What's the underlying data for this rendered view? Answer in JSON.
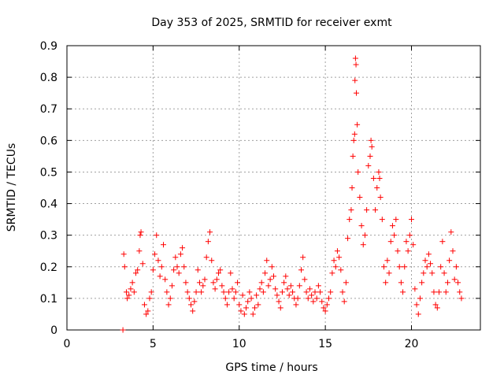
{
  "chart_data": {
    "type": "scatter",
    "title": "Day 353 of 2025, SRMTID for receiver exmt",
    "xlabel": "GPS time / hours",
    "ylabel": "SRMTID / TECUs",
    "xlim": [
      0,
      24
    ],
    "ylim": [
      0,
      0.9
    ],
    "xticks": [
      0,
      5,
      10,
      15,
      20
    ],
    "yticks": [
      0,
      0.1,
      0.2,
      0.3,
      0.4,
      0.5,
      0.6,
      0.7,
      0.8,
      0.9
    ],
    "grid": true,
    "marker": "+",
    "series": [
      {
        "name": "SRMTID",
        "color": "#ff0000",
        "points": [
          [
            3.25,
            0.0
          ],
          [
            3.3,
            0.24
          ],
          [
            3.35,
            0.2
          ],
          [
            3.45,
            0.12
          ],
          [
            3.5,
            0.1
          ],
          [
            3.6,
            0.11
          ],
          [
            3.7,
            0.13
          ],
          [
            3.8,
            0.15
          ],
          [
            3.9,
            0.12
          ],
          [
            4.0,
            0.18
          ],
          [
            4.1,
            0.19
          ],
          [
            4.2,
            0.25
          ],
          [
            4.25,
            0.3
          ],
          [
            4.3,
            0.31
          ],
          [
            4.4,
            0.21
          ],
          [
            4.5,
            0.08
          ],
          [
            4.6,
            0.05
          ],
          [
            4.7,
            0.06
          ],
          [
            4.8,
            0.1
          ],
          [
            4.9,
            0.12
          ],
          [
            5.0,
            0.19
          ],
          [
            5.1,
            0.24
          ],
          [
            5.2,
            0.3
          ],
          [
            5.3,
            0.22
          ],
          [
            5.4,
            0.17
          ],
          [
            5.5,
            0.2
          ],
          [
            5.6,
            0.27
          ],
          [
            5.7,
            0.16
          ],
          [
            5.8,
            0.12
          ],
          [
            5.9,
            0.08
          ],
          [
            6.0,
            0.1
          ],
          [
            6.1,
            0.14
          ],
          [
            6.2,
            0.19
          ],
          [
            6.3,
            0.23
          ],
          [
            6.4,
            0.2
          ],
          [
            6.5,
            0.18
          ],
          [
            6.6,
            0.24
          ],
          [
            6.7,
            0.26
          ],
          [
            6.8,
            0.2
          ],
          [
            6.9,
            0.15
          ],
          [
            7.0,
            0.12
          ],
          [
            7.1,
            0.1
          ],
          [
            7.2,
            0.08
          ],
          [
            7.3,
            0.06
          ],
          [
            7.4,
            0.09
          ],
          [
            7.5,
            0.12
          ],
          [
            7.6,
            0.19
          ],
          [
            7.7,
            0.15
          ],
          [
            7.8,
            0.12
          ],
          [
            7.9,
            0.14
          ],
          [
            8.0,
            0.16
          ],
          [
            8.1,
            0.23
          ],
          [
            8.2,
            0.28
          ],
          [
            8.3,
            0.31
          ],
          [
            8.4,
            0.22
          ],
          [
            8.5,
            0.15
          ],
          [
            8.6,
            0.13
          ],
          [
            8.7,
            0.16
          ],
          [
            8.8,
            0.18
          ],
          [
            8.9,
            0.19
          ],
          [
            9.0,
            0.14
          ],
          [
            9.1,
            0.12
          ],
          [
            9.2,
            0.1
          ],
          [
            9.3,
            0.08
          ],
          [
            9.4,
            0.12
          ],
          [
            9.5,
            0.18
          ],
          [
            9.6,
            0.13
          ],
          [
            9.7,
            0.1
          ],
          [
            9.8,
            0.12
          ],
          [
            9.9,
            0.15
          ],
          [
            10.0,
            0.08
          ],
          [
            10.1,
            0.06
          ],
          [
            10.2,
            0.11
          ],
          [
            10.3,
            0.05
          ],
          [
            10.4,
            0.07
          ],
          [
            10.5,
            0.09
          ],
          [
            10.6,
            0.12
          ],
          [
            10.7,
            0.1
          ],
          [
            10.8,
            0.05
          ],
          [
            10.9,
            0.07
          ],
          [
            11.0,
            0.11
          ],
          [
            11.1,
            0.08
          ],
          [
            11.2,
            0.13
          ],
          [
            11.3,
            0.15
          ],
          [
            11.4,
            0.12
          ],
          [
            11.5,
            0.18
          ],
          [
            11.6,
            0.22
          ],
          [
            11.7,
            0.14
          ],
          [
            11.8,
            0.16
          ],
          [
            11.9,
            0.2
          ],
          [
            12.0,
            0.17
          ],
          [
            12.1,
            0.13
          ],
          [
            12.2,
            0.11
          ],
          [
            12.3,
            0.09
          ],
          [
            12.4,
            0.07
          ],
          [
            12.5,
            0.12
          ],
          [
            12.6,
            0.15
          ],
          [
            12.7,
            0.17
          ],
          [
            12.8,
            0.13
          ],
          [
            12.9,
            0.11
          ],
          [
            13.0,
            0.14
          ],
          [
            13.1,
            0.12
          ],
          [
            13.2,
            0.1
          ],
          [
            13.3,
            0.08
          ],
          [
            13.4,
            0.1
          ],
          [
            13.5,
            0.14
          ],
          [
            13.6,
            0.19
          ],
          [
            13.7,
            0.23
          ],
          [
            13.8,
            0.16
          ],
          [
            13.9,
            0.12
          ],
          [
            14.0,
            0.1
          ],
          [
            14.1,
            0.13
          ],
          [
            14.2,
            0.11
          ],
          [
            14.3,
            0.09
          ],
          [
            14.4,
            0.12
          ],
          [
            14.5,
            0.1
          ],
          [
            14.6,
            0.14
          ],
          [
            14.7,
            0.12
          ],
          [
            14.8,
            0.09
          ],
          [
            14.9,
            0.07
          ],
          [
            15.0,
            0.06
          ],
          [
            15.1,
            0.08
          ],
          [
            15.2,
            0.1
          ],
          [
            15.3,
            0.12
          ],
          [
            15.4,
            0.18
          ],
          [
            15.5,
            0.22
          ],
          [
            15.6,
            0.2
          ],
          [
            15.7,
            0.25
          ],
          [
            15.8,
            0.23
          ],
          [
            15.9,
            0.19
          ],
          [
            16.0,
            0.12
          ],
          [
            16.1,
            0.09
          ],
          [
            16.2,
            0.15
          ],
          [
            16.3,
            0.29
          ],
          [
            16.4,
            0.35
          ],
          [
            16.5,
            0.38
          ],
          [
            16.55,
            0.45
          ],
          [
            16.6,
            0.55
          ],
          [
            16.65,
            0.6
          ],
          [
            16.7,
            0.62
          ],
          [
            16.72,
            0.79
          ],
          [
            16.75,
            0.86
          ],
          [
            16.78,
            0.84
          ],
          [
            16.8,
            0.75
          ],
          [
            16.85,
            0.65
          ],
          [
            16.9,
            0.5
          ],
          [
            17.0,
            0.42
          ],
          [
            17.1,
            0.33
          ],
          [
            17.2,
            0.27
          ],
          [
            17.3,
            0.3
          ],
          [
            17.4,
            0.38
          ],
          [
            17.5,
            0.52
          ],
          [
            17.6,
            0.55
          ],
          [
            17.65,
            0.6
          ],
          [
            17.7,
            0.58
          ],
          [
            17.8,
            0.48
          ],
          [
            17.9,
            0.38
          ],
          [
            18.0,
            0.45
          ],
          [
            18.1,
            0.5
          ],
          [
            18.15,
            0.48
          ],
          [
            18.2,
            0.42
          ],
          [
            18.3,
            0.35
          ],
          [
            18.4,
            0.2
          ],
          [
            18.5,
            0.15
          ],
          [
            18.6,
            0.22
          ],
          [
            18.7,
            0.18
          ],
          [
            18.8,
            0.28
          ],
          [
            18.9,
            0.33
          ],
          [
            19.0,
            0.3
          ],
          [
            19.1,
            0.35
          ],
          [
            19.2,
            0.25
          ],
          [
            19.3,
            0.2
          ],
          [
            19.4,
            0.15
          ],
          [
            19.5,
            0.12
          ],
          [
            19.6,
            0.2
          ],
          [
            19.7,
            0.28
          ],
          [
            19.8,
            0.25
          ],
          [
            19.9,
            0.3
          ],
          [
            20.0,
            0.35
          ],
          [
            20.1,
            0.27
          ],
          [
            20.2,
            0.13
          ],
          [
            20.3,
            0.08
          ],
          [
            20.4,
            0.05
          ],
          [
            20.5,
            0.1
          ],
          [
            20.6,
            0.15
          ],
          [
            20.7,
            0.18
          ],
          [
            20.8,
            0.22
          ],
          [
            20.9,
            0.2
          ],
          [
            21.0,
            0.24
          ],
          [
            21.1,
            0.21
          ],
          [
            21.2,
            0.18
          ],
          [
            21.3,
            0.12
          ],
          [
            21.4,
            0.08
          ],
          [
            21.5,
            0.07
          ],
          [
            21.6,
            0.12
          ],
          [
            21.7,
            0.2
          ],
          [
            21.8,
            0.28
          ],
          [
            21.9,
            0.18
          ],
          [
            22.0,
            0.12
          ],
          [
            22.1,
            0.15
          ],
          [
            22.2,
            0.22
          ],
          [
            22.3,
            0.31
          ],
          [
            22.4,
            0.25
          ],
          [
            22.5,
            0.16
          ],
          [
            22.6,
            0.2
          ],
          [
            22.7,
            0.15
          ],
          [
            22.8,
            0.12
          ],
          [
            22.9,
            0.1
          ]
        ]
      }
    ]
  }
}
